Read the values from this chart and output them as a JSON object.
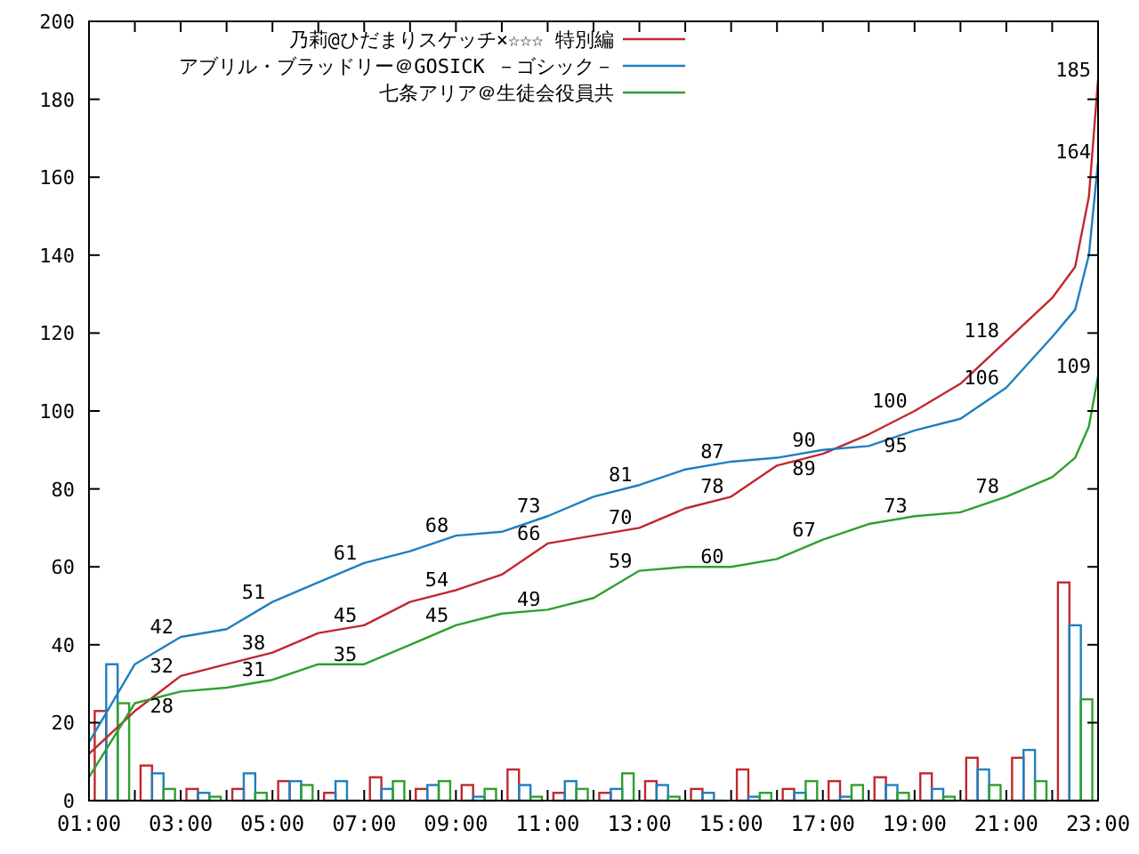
{
  "chart_data": {
    "type": "line",
    "xlim": [
      1,
      23
    ],
    "ylim": [
      0,
      200
    ],
    "xticks": [
      {
        "value": 1,
        "label": "01:00"
      },
      {
        "value": 2,
        "label": null
      },
      {
        "value": 3,
        "label": "03:00"
      },
      {
        "value": 4,
        "label": null
      },
      {
        "value": 5,
        "label": "05:00"
      },
      {
        "value": 6,
        "label": null
      },
      {
        "value": 7,
        "label": "07:00"
      },
      {
        "value": 8,
        "label": null
      },
      {
        "value": 9,
        "label": "09:00"
      },
      {
        "value": 10,
        "label": null
      },
      {
        "value": 11,
        "label": "11:00"
      },
      {
        "value": 12,
        "label": null
      },
      {
        "value": 13,
        "label": "13:00"
      },
      {
        "value": 14,
        "label": null
      },
      {
        "value": 15,
        "label": "15:00"
      },
      {
        "value": 16,
        "label": null
      },
      {
        "value": 17,
        "label": "17:00"
      },
      {
        "value": 18,
        "label": null
      },
      {
        "value": 19,
        "label": "19:00"
      },
      {
        "value": 20,
        "label": null
      },
      {
        "value": 21,
        "label": "21:00"
      },
      {
        "value": 22,
        "label": null
      },
      {
        "value": 23,
        "label": "23:00"
      }
    ],
    "yticks": [
      0,
      20,
      40,
      60,
      80,
      100,
      120,
      140,
      160,
      180,
      200
    ],
    "grid": false,
    "legend": "top",
    "series": [
      {
        "type": "bar",
        "color": "#c0282e",
        "x": [
          1.5,
          2.5,
          3.5,
          4.5,
          5.5,
          6.5,
          7.5,
          8.5,
          9.5,
          10.5,
          11.5,
          12.5,
          13.5,
          14.5,
          15.5,
          16.5,
          17.5,
          18.5,
          19.5,
          20.5,
          21.5,
          22.5
        ],
        "values": [
          23,
          9,
          3,
          3,
          5,
          2,
          6,
          3,
          4,
          8,
          2,
          2,
          5,
          3,
          8,
          3,
          5,
          6,
          7,
          11,
          11,
          56
        ]
      },
      {
        "type": "bar",
        "color": "#1f7fbf",
        "x": [
          1.5,
          2.5,
          3.5,
          4.5,
          5.5,
          6.5,
          7.5,
          8.5,
          9.5,
          10.5,
          11.5,
          12.5,
          13.5,
          14.5,
          15.5,
          16.5,
          17.5,
          18.5,
          19.5,
          20.5,
          21.5,
          22.5
        ],
        "values": [
          35,
          7,
          2,
          7,
          5,
          5,
          3,
          4,
          1,
          4,
          5,
          3,
          4,
          2,
          1,
          2,
          1,
          4,
          3,
          8,
          13,
          45
        ]
      },
      {
        "type": "bar",
        "color": "#2ea02e",
        "x": [
          1.5,
          2.5,
          3.5,
          4.5,
          5.5,
          6.5,
          7.5,
          8.5,
          9.5,
          10.5,
          11.5,
          12.5,
          13.5,
          14.5,
          15.5,
          16.5,
          17.5,
          18.5,
          19.5,
          20.5,
          21.5,
          22.5
        ],
        "values": [
          25,
          3,
          1,
          2,
          4,
          0,
          5,
          5,
          3,
          1,
          3,
          7,
          1,
          0,
          2,
          5,
          4,
          2,
          1,
          4,
          5,
          26
        ]
      },
      {
        "name": "乃莉@ひだまりスケッチ×☆☆☆ 特別編",
        "color": "#c0282e",
        "x": [
          1,
          2,
          3,
          4,
          5,
          6,
          7,
          8,
          9,
          10,
          11,
          12,
          13,
          14,
          15,
          16,
          17,
          18,
          19,
          20,
          21,
          22,
          22.5,
          22.8,
          23
        ],
        "values": [
          12,
          23,
          32,
          35,
          38,
          43,
          45,
          51,
          54,
          58,
          66,
          68,
          70,
          75,
          78,
          86,
          89,
          94,
          100,
          107,
          118,
          129,
          137,
          155,
          185
        ]
      },
      {
        "name": "アブリル・ブラッドリー＠GOSICK －ゴシック－",
        "color": "#1f7fbf",
        "x": [
          1,
          2,
          3,
          4,
          5,
          6,
          7,
          8,
          9,
          10,
          11,
          12,
          13,
          14,
          15,
          16,
          17,
          18,
          19,
          20,
          21,
          22,
          22.5,
          22.8,
          23
        ],
        "values": [
          15,
          35,
          42,
          44,
          51,
          56,
          61,
          64,
          68,
          69,
          73,
          78,
          81,
          85,
          87,
          88,
          90,
          91,
          95,
          98,
          106,
          119,
          126,
          140,
          164
        ]
      },
      {
        "name": "七条アリア＠生徒会役員共",
        "color": "#2ea02e",
        "x": [
          1,
          2,
          3,
          4,
          5,
          6,
          7,
          8,
          9,
          10,
          11,
          12,
          13,
          14,
          15,
          16,
          17,
          18,
          19,
          20,
          21,
          22,
          22.5,
          22.8,
          23
        ],
        "values": [
          6,
          25,
          28,
          29,
          31,
          35,
          35,
          40,
          45,
          48,
          49,
          52,
          59,
          60,
          60,
          62,
          67,
          71,
          73,
          74,
          78,
          83,
          88,
          96,
          109
        ]
      }
    ],
    "annotations": [
      {
        "text": "32",
        "x": 3,
        "y": 32
      },
      {
        "text": "38",
        "x": 5,
        "y": 38
      },
      {
        "text": "45",
        "x": 7,
        "y": 45
      },
      {
        "text": "54",
        "x": 9,
        "y": 54
      },
      {
        "text": "66",
        "x": 11,
        "y": 66
      },
      {
        "text": "70",
        "x": 13,
        "y": 70
      },
      {
        "text": "78",
        "x": 15,
        "y": 78
      },
      {
        "text": "89",
        "x": 17,
        "y": 89
      },
      {
        "text": "100",
        "x": 19,
        "y": 100
      },
      {
        "text": "118",
        "x": 21,
        "y": 118
      },
      {
        "text": "185",
        "x": 23,
        "y": 185
      },
      {
        "text": "42",
        "x": 3,
        "y": 42
      },
      {
        "text": "51",
        "x": 5,
        "y": 51
      },
      {
        "text": "61",
        "x": 7,
        "y": 61
      },
      {
        "text": "68",
        "x": 9,
        "y": 68
      },
      {
        "text": "73",
        "x": 11,
        "y": 73
      },
      {
        "text": "81",
        "x": 13,
        "y": 81
      },
      {
        "text": "87",
        "x": 15,
        "y": 87
      },
      {
        "text": "90",
        "x": 17,
        "y": 90
      },
      {
        "text": "95",
        "x": 19,
        "y": 95
      },
      {
        "text": "106",
        "x": 21,
        "y": 106
      },
      {
        "text": "164",
        "x": 23,
        "y": 164
      },
      {
        "text": "28",
        "x": 3,
        "y": 28
      },
      {
        "text": "31",
        "x": 5,
        "y": 31
      },
      {
        "text": "35",
        "x": 7,
        "y": 35
      },
      {
        "text": "45",
        "x": 9,
        "y": 45
      },
      {
        "text": "49",
        "x": 11,
        "y": 49
      },
      {
        "text": "59",
        "x": 13,
        "y": 59
      },
      {
        "text": "60",
        "x": 15,
        "y": 60
      },
      {
        "text": "67",
        "x": 17,
        "y": 67
      },
      {
        "text": "73",
        "x": 19,
        "y": 73
      },
      {
        "text": "78",
        "x": 21,
        "y": 78
      },
      {
        "text": "109",
        "x": 23,
        "y": 109
      }
    ]
  }
}
